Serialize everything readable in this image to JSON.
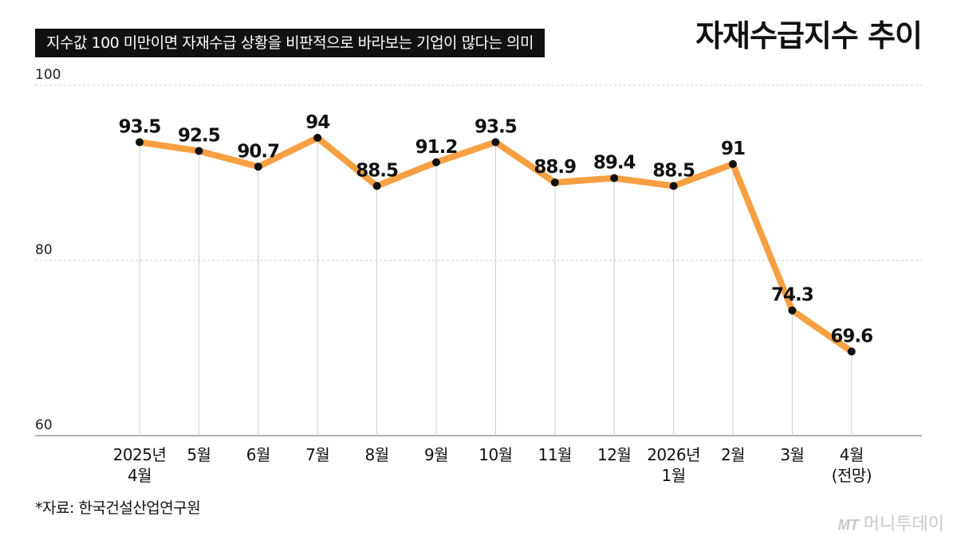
{
  "header": {
    "title": "자재수급지수 추이",
    "subtitle": "지수값 100 미만이면 자재수급 상황을 비판적으로 바라보는 기업이 많다는 의미"
  },
  "footer": {
    "source": "*자료: 한국건설산업연구원",
    "logo_mark": "MT",
    "logo_text": "머니투데이"
  },
  "colors": {
    "line": "#f7a043",
    "point": "#111111",
    "grid": "#cccccc",
    "axis": "#999999"
  },
  "chart_data": {
    "type": "line",
    "title": "자재수급지수 추이",
    "xlabel": "",
    "ylabel": "",
    "ylim": [
      60,
      100
    ],
    "yticks": [
      60,
      80,
      100
    ],
    "grid": true,
    "categories": [
      [
        "2025년",
        "4월"
      ],
      [
        "5월"
      ],
      [
        "6월"
      ],
      [
        "7월"
      ],
      [
        "8월"
      ],
      [
        "9월"
      ],
      [
        "10월"
      ],
      [
        "11월"
      ],
      [
        "12월"
      ],
      [
        "2026년",
        "1월"
      ],
      [
        "2월"
      ],
      [
        "3월"
      ],
      [
        "4월",
        "(전망)"
      ]
    ],
    "values": [
      93.5,
      92.5,
      90.7,
      94,
      88.5,
      91.2,
      93.5,
      88.9,
      89.4,
      88.5,
      91,
      74.3,
      69.6
    ],
    "value_labels": [
      "93.5",
      "92.5",
      "90.7",
      "94",
      "88.5",
      "91.2",
      "93.5",
      "88.9",
      "89.4",
      "88.5",
      "91",
      "74.3",
      "69.6"
    ]
  }
}
